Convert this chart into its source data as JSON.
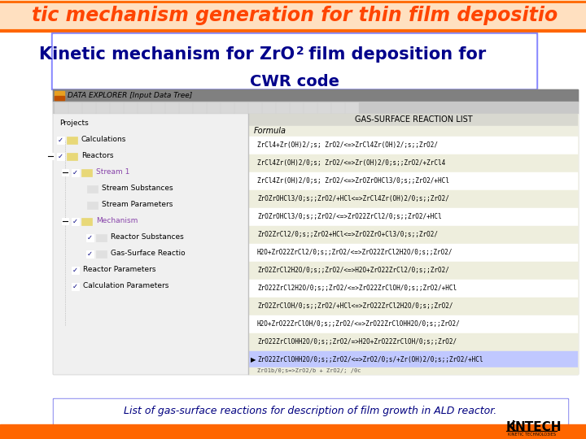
{
  "title_text": "tic mechanism generation for thin film depositio",
  "title_color": "#FF4500",
  "title_bg": "#FFE0C0",
  "orange_line_color": "#FF6600",
  "subtitle_line1": "Kinetic mechanism for ZrO",
  "subtitle_sup": "2",
  "subtitle_line1b": " film deposition for",
  "subtitle_line2": "CWR code",
  "subtitle_color": "#00008B",
  "subtitle_bg": "#FFFFFF",
  "subtitle_border": "#8888FF",
  "subtitle_border2": "#AAAAFF",
  "bottom_text": "List of gas-surface reactions for description of film growth in ALD reactor.",
  "bottom_color": "#000080",
  "bottom_border": "#8888EE",
  "bottom_bg": "#FFFFFF",
  "app_bg": "#FFFFFF",
  "win_title_bg": "#808080",
  "win_title_fg": "#000000",
  "win_title_text": "DATA EXPLORER [Input Data Tree]",
  "toolbar_bg": "#C8C8C8",
  "left_panel_bg": "#F0F0F0",
  "right_panel_bg": "#FFFFF8",
  "right_header_bg": "#D8D8D8",
  "right_header_text": "GAS-SURFACE REACTION LIST",
  "formula_text": "Formula",
  "formula_bg": "#F0F0E8",
  "reactions": [
    "ZrCl4+Zr(OH)2/;s; ZrO2/<=>ZrCl4Zr(OH)2/;s;;ZrO2/",
    "ZrCl4Zr(OH)2/0;s; ZrO2/<=>Zr(OH)2/0;s;;ZrO2/+ZrCl4",
    "ZrCl4Zr(OH)2/0;s; ZrO2/<=>ZrOZrOHCl3/0;s;;ZrO2/+HCl",
    "ZrOZrOHCl3/0;s;;ZrO2/+HCl<=>ZrCl4Zr(OH)2/0;s;;ZrO2/",
    "ZrOZrOHCl3/0;s;;ZrO2/<=>ZrO22ZrCl2/0;s;;ZrO2/+HCl",
    "ZrO2ZrCl2/0;s;;ZrO2+HCl<=>ZrO2ZrO+Cl3/0;s;;ZrO2/",
    "H2O+ZrO22ZrCl2/0;s;;ZrO2/<=>ZrO22ZrCl2H2O/0;s;;ZrO2/",
    "ZrO2ZrCl2H2O/0;s;;ZrO2/<=>H2O+ZrO22ZrCl2/0;s;;ZrO2/",
    "ZrO22ZrCl2H2O/0;s;;ZrO2/<=>ZrO22ZrClOH/0;s;;ZrO2/+HCl",
    "ZrO2ZrClOH/0;s;;ZrO2/+HCl<=>ZrO22ZrCl2H2O/0;s;;ZrO2/",
    "H2O+ZrO22ZrClOH/0;s;;ZrO2/<=>ZrO22ZrClOHH2O/0;s;;ZrO2/",
    "ZrO22ZrClOHH2O/0;s;;ZrO2/=>H2O+ZrO22ZrClOH/0;s;;ZrO2/",
    "ZrO22ZrClOHH2O/0;s;;ZrO2/<=>ZrO2/0;s/+Zr(OH)2/0;s;;ZrO2/+HCl"
  ],
  "row_colors": [
    "#FFFFFF",
    "#EEEEDD"
  ],
  "highlight_row": 12,
  "highlight_color": "#C0C8FF",
  "tree_bg": "#FFFFFF",
  "stream1_color": "#8844AA",
  "mechanism_color": "#8844AA",
  "logo_left": "K",
  "logo_sep": "|",
  "logo_right": "NTECH",
  "logo_sub": "KINETIC TECHNOLO3IES",
  "logo_color": "#000000",
  "orange_bar_color": "#FF6600"
}
